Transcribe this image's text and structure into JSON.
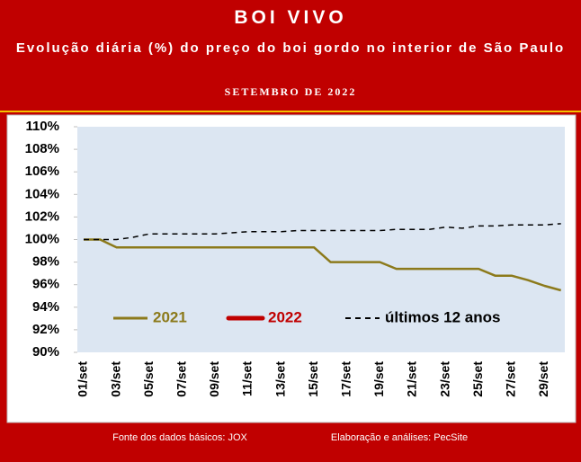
{
  "chart_data": {
    "type": "line",
    "title": "BOI VIVO",
    "subtitle": "Evolução diária (%) do preço do boi gordo no interior de São Paulo",
    "period": "SETEMBRO DE 2022",
    "categories": [
      "01/set",
      null,
      "03/set",
      null,
      "05/set",
      null,
      "07/set",
      null,
      "09/set",
      null,
      "11/set",
      null,
      "13/set",
      null,
      "15/set",
      null,
      "17/set",
      null,
      "19/set",
      null,
      "21/set",
      null,
      "23/set",
      null,
      "25/set",
      null,
      "27/set",
      null,
      "29/set",
      null
    ],
    "series": [
      {
        "name": "2021",
        "color": "#8c7a1b",
        "dash": false,
        "values": [
          100,
          100,
          99.3,
          99.3,
          99.3,
          99.3,
          99.3,
          99.3,
          99.3,
          99.3,
          99.3,
          99.3,
          99.3,
          99.3,
          99.3,
          98.0,
          98.0,
          98.0,
          98.0,
          97.4,
          97.4,
          97.4,
          97.4,
          97.4,
          97.4,
          96.8,
          96.8,
          96.4,
          95.9,
          95.5
        ]
      },
      {
        "name": "2022",
        "color": "#c00000",
        "dash": false,
        "values": [
          null,
          null,
          null,
          null,
          null,
          null,
          null,
          null,
          null,
          null,
          null,
          null,
          null,
          null,
          null,
          null,
          null,
          null,
          null,
          null,
          null,
          null,
          null,
          null,
          null,
          null,
          null,
          null,
          null,
          null
        ]
      },
      {
        "name": "últimos 12 anos",
        "color": "#000000",
        "dash": true,
        "values": [
          100,
          100,
          100,
          100.2,
          100.5,
          100.5,
          100.5,
          100.5,
          100.5,
          100.6,
          100.7,
          100.7,
          100.7,
          100.8,
          100.8,
          100.8,
          100.8,
          100.8,
          100.8,
          100.9,
          100.9,
          100.9,
          101.1,
          101.0,
          101.2,
          101.2,
          101.3,
          101.3,
          101.3,
          101.4
        ]
      }
    ],
    "ylim": [
      90,
      110
    ],
    "yticks": [
      {
        "value": 90,
        "label": "90%"
      },
      {
        "value": 92,
        "label": "92%"
      },
      {
        "value": 94,
        "label": "94%"
      },
      {
        "value": 96,
        "label": "96%"
      },
      {
        "value": 98,
        "label": "98%"
      },
      {
        "value": 100,
        "label": "100%"
      },
      {
        "value": 102,
        "label": "102%"
      },
      {
        "value": 104,
        "label": "104%"
      },
      {
        "value": 106,
        "label": "106%"
      },
      {
        "value": 108,
        "label": "108%"
      },
      {
        "value": 110,
        "label": "110%"
      }
    ],
    "grid": false,
    "legend": "bottom"
  },
  "footer": {
    "source": "Fonte dos dados básicos: JOX",
    "credit": "Elaboração e análises: PecSite"
  }
}
